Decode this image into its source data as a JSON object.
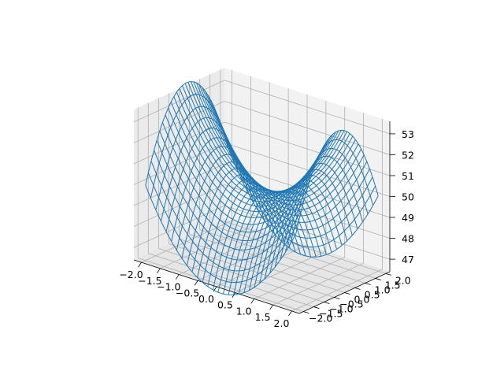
{
  "chart_data": {
    "type": "wireframe",
    "projection": "3d",
    "title": "",
    "xlabel": "",
    "ylabel": "",
    "zlabel": "",
    "function": "z = 50 + x^2 - y^2",
    "x_range": [
      -2.0,
      2.0
    ],
    "y_range": [
      -2.0,
      2.0
    ],
    "grid_count": 30,
    "xlim": [
      -2.2,
      2.2
    ],
    "ylim": [
      -2.2,
      2.2
    ],
    "zlim": [
      46.4,
      53.6
    ],
    "x_ticks": [
      "−2.0",
      "−1.5",
      "−1.0",
      "−0.5",
      "0.0",
      "0.5",
      "1.0",
      "1.5",
      "2.0"
    ],
    "y_ticks": [
      "−2.0",
      "−1.5",
      "−1.0",
      "−0.5",
      "0.0",
      "0.5",
      "1.0",
      "1.5",
      "2.0"
    ],
    "z_ticks": [
      "47",
      "48",
      "49",
      "50",
      "51",
      "52",
      "53"
    ],
    "x_tick_values": [
      -2.0,
      -1.5,
      -1.0,
      -0.5,
      0.0,
      0.5,
      1.0,
      1.5,
      2.0
    ],
    "y_tick_values": [
      -2.0,
      -1.5,
      -1.0,
      -0.5,
      0.0,
      0.5,
      1.0,
      1.5,
      2.0
    ],
    "z_tick_values": [
      47,
      48,
      49,
      50,
      51,
      52,
      53
    ],
    "line_color": "#1f77b4",
    "pane_colors": {
      "xz": "#f2f2f2",
      "yz": "#ebebeb",
      "floor": "#e6e6e6"
    },
    "grid": true
  }
}
